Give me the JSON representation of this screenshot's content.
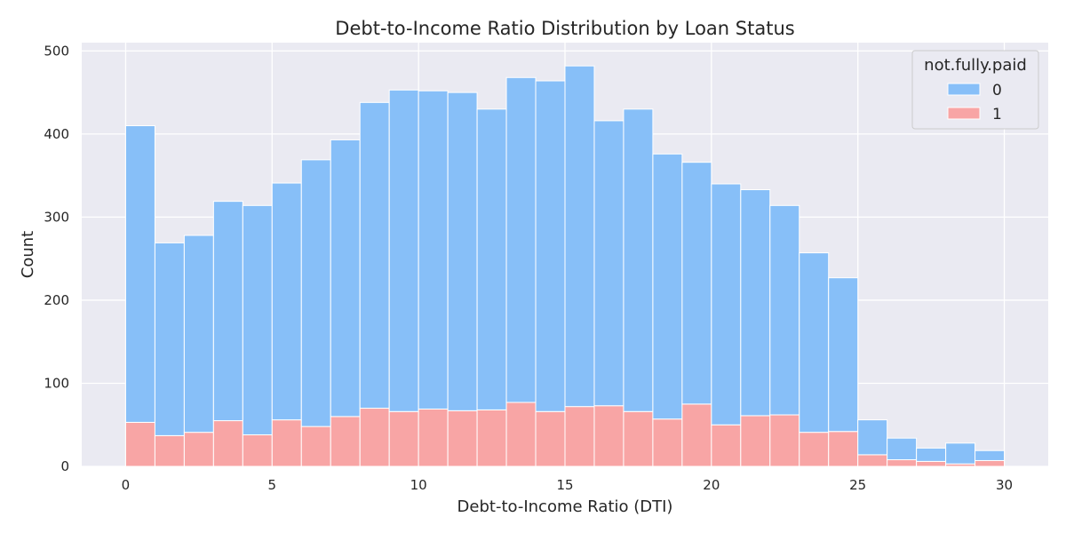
{
  "chart_data": {
    "type": "bar",
    "stacked": true,
    "title": "Debt-to-Income Ratio Distribution by Loan Status",
    "xlabel": "Debt-to-Income Ratio (DTI)",
    "ylabel": "Count",
    "xlim": [
      -1.5,
      31.5
    ],
    "ylim": [
      0,
      510
    ],
    "xticks": [
      0,
      5,
      10,
      15,
      20,
      25,
      30
    ],
    "yticks": [
      0,
      100,
      200,
      300,
      400,
      500
    ],
    "grid": true,
    "legend": {
      "title": "not.fully.paid",
      "position": "top-right"
    },
    "bin_edges": [
      0,
      1,
      2,
      3,
      4,
      5,
      6,
      7,
      8,
      9,
      10,
      11,
      12,
      13,
      14,
      15,
      16,
      17,
      18,
      19,
      20,
      21,
      22,
      23,
      24,
      25,
      26,
      27,
      28,
      29,
      30
    ],
    "series": [
      {
        "name": "1",
        "color": "#f8a5a5",
        "values": [
          53,
          37,
          41,
          55,
          38,
          56,
          48,
          60,
          70,
          66,
          69,
          67,
          68,
          77,
          66,
          72,
          73,
          66,
          57,
          75,
          50,
          61,
          62,
          41,
          42,
          14,
          8,
          6,
          3,
          7
        ]
      },
      {
        "name": "0",
        "color": "#87bff8",
        "values": [
          357,
          232,
          237,
          264,
          276,
          285,
          321,
          333,
          368,
          387,
          383,
          383,
          362,
          391,
          398,
          410,
          343,
          364,
          319,
          291,
          290,
          272,
          252,
          216,
          185,
          42,
          26,
          16,
          25,
          12
        ]
      }
    ]
  }
}
